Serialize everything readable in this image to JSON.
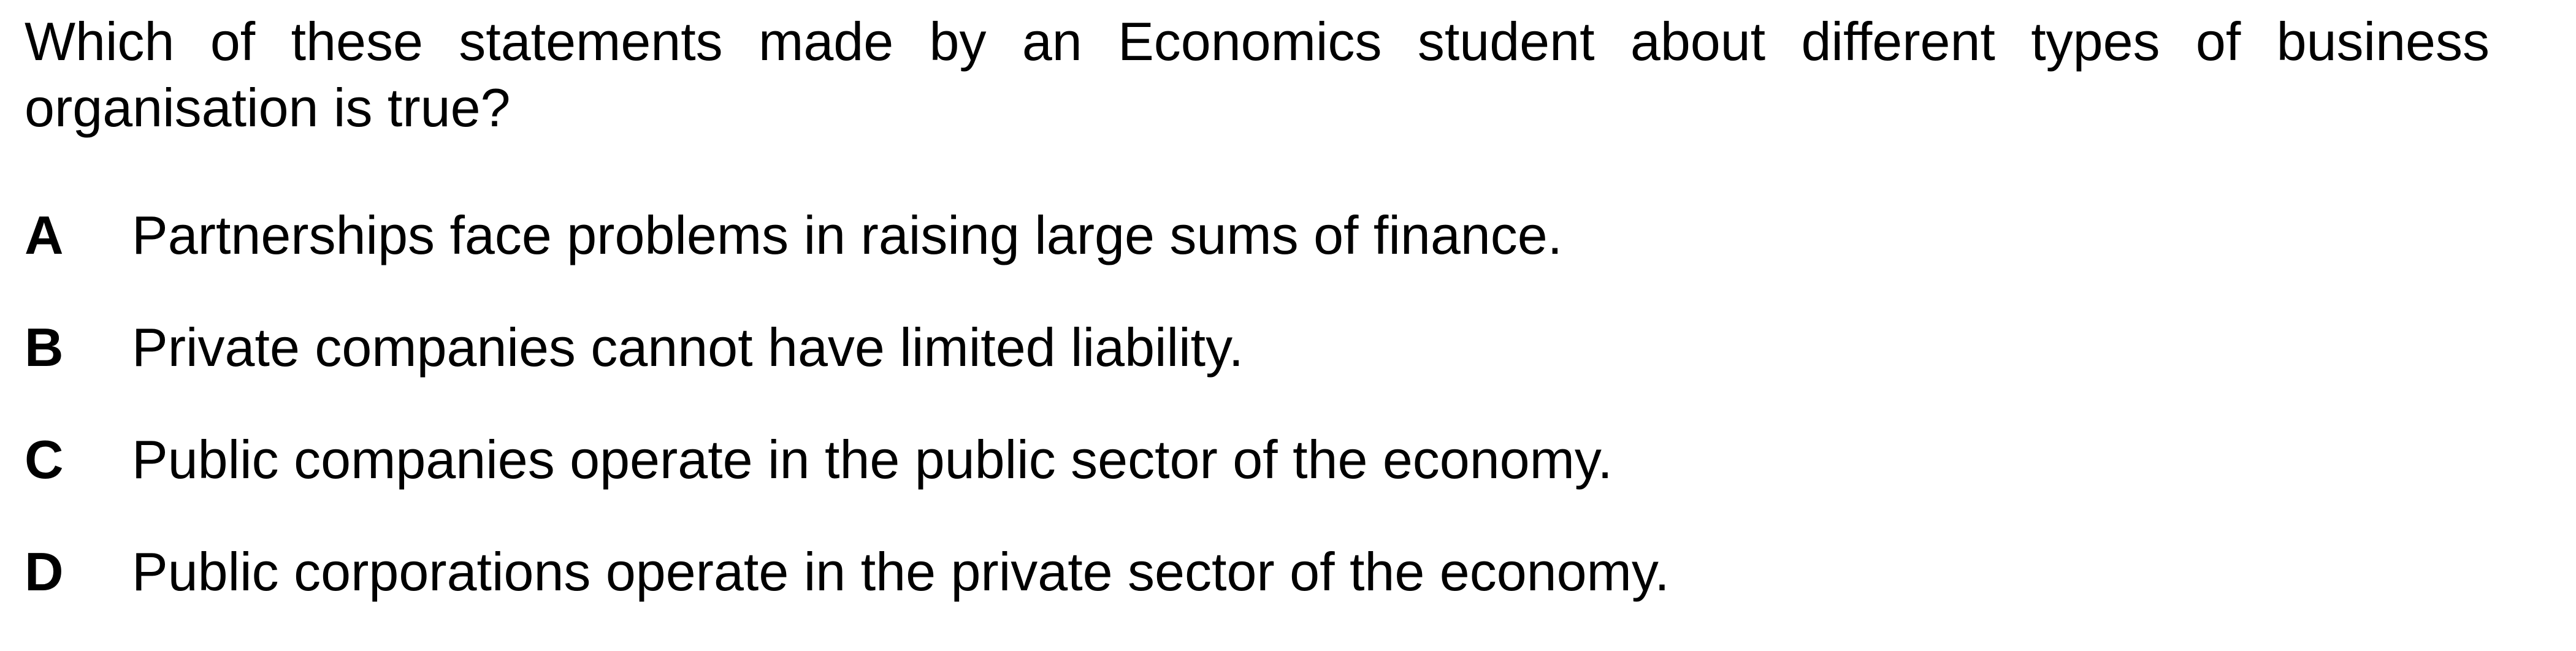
{
  "question": {
    "text": "Which of these statements made by an Economics student about different types of business organisation is true?"
  },
  "options": [
    {
      "letter": "A",
      "text": "Partnerships face problems in raising large sums of finance."
    },
    {
      "letter": "B",
      "text": "Private companies cannot have limited liability."
    },
    {
      "letter": "C",
      "text": "Public companies operate in the public sector of the economy."
    },
    {
      "letter": "D",
      "text": "Public corporations operate in the private sector of the economy."
    }
  ]
}
